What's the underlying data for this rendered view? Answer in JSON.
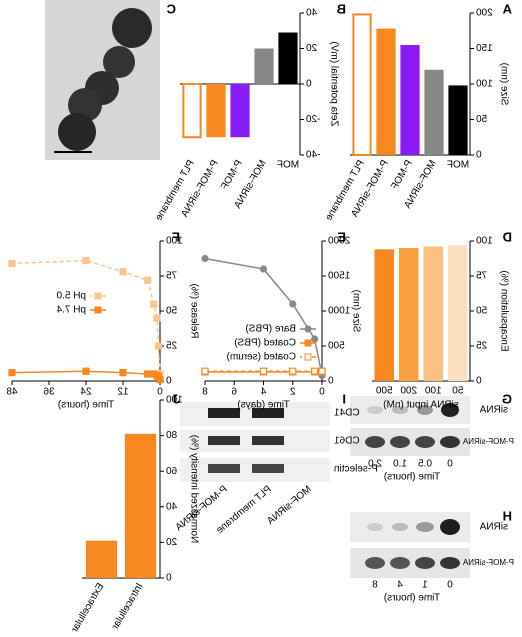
{
  "chart_data": [
    {
      "type": "bar",
      "panel": "A",
      "ylabel": "Size (nm)",
      "categories": [
        "MOF",
        "MOF-siRNA",
        "P-MOF",
        "P-MOF-siRNA",
        "PLT membrane"
      ],
      "values": [
        98,
        120,
        155,
        178,
        198
      ],
      "colors": [
        "#000000",
        "#888888",
        "#8a1cf5",
        "#f7871f",
        "#f7871f"
      ],
      "hollow": [
        false,
        false,
        false,
        false,
        true
      ],
      "ylim": [
        0,
        200
      ],
      "yticks": [
        0,
        50,
        100,
        150,
        200
      ]
    },
    {
      "type": "bar",
      "panel": "B",
      "ylabel": "Zeta potential (mV)",
      "categories": [
        "MOF",
        "MOF-siRNA",
        "P-MOF",
        "P-MOF-siRNA",
        "PLT membrane"
      ],
      "values": [
        29,
        20,
        -30,
        -30,
        -30
      ],
      "colors": [
        "#000000",
        "#888888",
        "#8a1cf5",
        "#f7871f",
        "#f7871f"
      ],
      "hollow": [
        false,
        false,
        false,
        false,
        true
      ],
      "ylim": [
        -40,
        40
      ],
      "yticks": [
        -40,
        -20,
        0,
        20,
        40
      ]
    },
    {
      "type": "bar",
      "panel": "D",
      "ylabel": "Encapsulation (%)",
      "xlabel": "siRNA input (nM)",
      "categories": [
        "50",
        "100",
        "200",
        "500"
      ],
      "values": [
        97,
        96,
        95,
        94
      ],
      "colors": [
        "#fde0c0",
        "#fbbf80",
        "#f9a040",
        "#f7871f"
      ],
      "hollow": [
        false,
        false,
        false,
        false
      ],
      "ylim": [
        0,
        100
      ],
      "yticks": [
        0,
        25,
        50,
        75,
        100
      ]
    },
    {
      "type": "line",
      "panel": "E",
      "ylabel": "Size (nm)",
      "xlabel": "Time (days)",
      "x": [
        0,
        0.5,
        2,
        4,
        8
      ],
      "xlim": [
        0,
        8
      ],
      "xticks": [
        0,
        2,
        4,
        6,
        8
      ],
      "ylim": [
        0,
        2000
      ],
      "yticks": [
        0,
        500,
        1000,
        1500,
        2000
      ],
      "legend": "lower left",
      "series": [
        {
          "name": "Bare (PBS)",
          "color": "#888888",
          "marker": "circle",
          "hollow": false,
          "dashed": false,
          "values": [
            80,
            600,
            1100,
            1600,
            1750
          ]
        },
        {
          "name": "Coated (PBS)",
          "color": "#f7871f",
          "marker": "square",
          "hollow": false,
          "dashed": false,
          "values": [
            130,
            130,
            130,
            130,
            130
          ]
        },
        {
          "name": "Coated (serum)",
          "color": "#f7871f",
          "marker": "square",
          "hollow": true,
          "dashed": true,
          "values": [
            140,
            140,
            140,
            140,
            140
          ]
        }
      ]
    },
    {
      "type": "line",
      "panel": "F",
      "ylabel": "Release (%)",
      "xlabel": "Time (hours)",
      "x": [
        0,
        0.5,
        1,
        2,
        4,
        12,
        24,
        48
      ],
      "xlim": [
        0,
        48
      ],
      "xticks": [
        0,
        12,
        24,
        36,
        48
      ],
      "ylim": [
        0,
        100
      ],
      "yticks": [
        0,
        25,
        50,
        75,
        100
      ],
      "legend": "center",
      "series": [
        {
          "name": "pH 5.0",
          "color": "#f9c58c",
          "marker": "square",
          "hollow": false,
          "dashed": true,
          "values": [
            5,
            25,
            45,
            55,
            72,
            78,
            86,
            84
          ]
        },
        {
          "name": "pH 7.4",
          "color": "#f7871f",
          "marker": "square",
          "hollow": false,
          "dashed": false,
          "values": [
            1,
            3,
            4,
            5,
            5,
            6,
            7,
            6
          ]
        }
      ]
    },
    {
      "type": "bar",
      "panel": "J",
      "ylabel": "Normalized intensity (%)",
      "categories": [
        "Intracellular",
        "Extracellular"
      ],
      "values": [
        81,
        21
      ],
      "colors": [
        "#f7871f",
        "#f7871f"
      ],
      "hollow": [
        false,
        false
      ],
      "ylim": [
        0,
        100
      ],
      "yticks": [
        0,
        20,
        40,
        60,
        80,
        100
      ]
    }
  ],
  "image_panel": {
    "panel": "C"
  },
  "blot_G": {
    "panel": "G",
    "rows": [
      "siRNA",
      "P-MOF-siRNA"
    ],
    "times": [
      "0",
      "0.5",
      "1.0",
      "2.0"
    ],
    "xlabel": "Time (hours)"
  },
  "blot_H": {
    "panel": "H",
    "rows": [
      "siRNA",
      "P-MOF-siRNA"
    ],
    "times": [
      "0",
      "1",
      "4",
      "8"
    ],
    "xlabel": "Time (hours)"
  },
  "blot_I": {
    "panel": "I",
    "rows": [
      "CD41",
      "CD61",
      "P-selectin"
    ],
    "lanes": [
      "MOF-siRNA",
      "PLT membrane",
      "P-MOF-siRNA"
    ]
  }
}
